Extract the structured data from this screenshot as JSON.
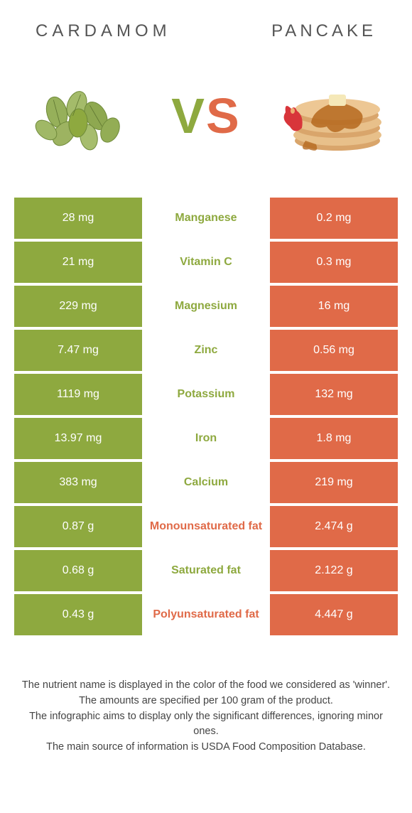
{
  "header": {
    "leftTitle": "CARDAMOM",
    "rightTitle": "PANCAKE"
  },
  "vs": {
    "v": "V",
    "s": "S"
  },
  "colors": {
    "green": "#8ea93f",
    "orange": "#e06a48",
    "white": "#ffffff",
    "text": "#444444"
  },
  "leftBgClass": "bg-green",
  "rightBgClass": "bg-orange",
  "rows": [
    {
      "left": "28 mg",
      "mid": "Manganese",
      "right": "0.2 mg",
      "winner": "green"
    },
    {
      "left": "21 mg",
      "mid": "Vitamin C",
      "right": "0.3 mg",
      "winner": "green"
    },
    {
      "left": "229 mg",
      "mid": "Magnesium",
      "right": "16 mg",
      "winner": "green"
    },
    {
      "left": "7.47 mg",
      "mid": "Zinc",
      "right": "0.56 mg",
      "winner": "green"
    },
    {
      "left": "1119 mg",
      "mid": "Potassium",
      "right": "132 mg",
      "winner": "green"
    },
    {
      "left": "13.97 mg",
      "mid": "Iron",
      "right": "1.8 mg",
      "winner": "green"
    },
    {
      "left": "383 mg",
      "mid": "Calcium",
      "right": "219 mg",
      "winner": "green"
    },
    {
      "left": "0.87 g",
      "mid": "Monounsaturated fat",
      "right": "2.474 g",
      "winner": "orange"
    },
    {
      "left": "0.68 g",
      "mid": "Saturated fat",
      "right": "2.122 g",
      "winner": "green"
    },
    {
      "left": "0.43 g",
      "mid": "Polyunsaturated fat",
      "right": "4.447 g",
      "winner": "orange"
    }
  ],
  "footer": {
    "line1": "The nutrient name is displayed in the color of the food we considered as 'winner'.",
    "line2": "The amounts are specified per 100 gram of the product.",
    "line3": "The infographic aims to display only the significant differences, ignoring minor ones.",
    "line4": "The main source of information is USDA Food Composition Database."
  }
}
